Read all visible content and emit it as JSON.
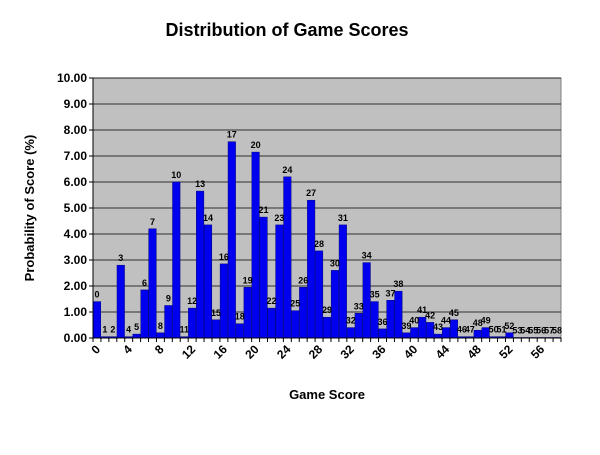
{
  "chart_data": {
    "type": "bar",
    "title": "Distribution of Game Scores",
    "xlabel": "Game Score",
    "ylabel": "Probability of Score (%)",
    "ylim": [
      0,
      10
    ],
    "y_ticks": [
      "0.00",
      "1.00",
      "2.00",
      "3.00",
      "4.00",
      "5.00",
      "6.00",
      "7.00",
      "8.00",
      "9.00",
      "10.00"
    ],
    "x_ticks": [
      "0",
      "4",
      "8",
      "12",
      "16",
      "20",
      "24",
      "28",
      "32",
      "36",
      "40",
      "44",
      "48",
      "52",
      "56"
    ],
    "categories": [
      "0",
      "1",
      "2",
      "3",
      "4",
      "5",
      "6",
      "7",
      "8",
      "9",
      "10",
      "11",
      "12",
      "13",
      "14",
      "15",
      "16",
      "17",
      "18",
      "19",
      "20",
      "21",
      "22",
      "23",
      "24",
      "25",
      "26",
      "27",
      "28",
      "29",
      "30",
      "31",
      "32",
      "33",
      "34",
      "35",
      "36",
      "37",
      "38",
      "39",
      "40",
      "41",
      "42",
      "43",
      "44",
      "45",
      "46",
      "47",
      "48",
      "49",
      "50",
      "51",
      "52",
      "53",
      "54",
      "55",
      "56",
      "57",
      "58"
    ],
    "values": [
      1.4,
      0.05,
      0.05,
      2.8,
      0.05,
      0.15,
      1.85,
      4.2,
      0.2,
      1.25,
      6.0,
      0.05,
      1.15,
      5.65,
      4.35,
      0.7,
      2.85,
      7.55,
      0.55,
      1.95,
      7.15,
      4.65,
      1.15,
      4.35,
      6.2,
      1.05,
      1.95,
      5.3,
      3.35,
      0.8,
      2.6,
      4.35,
      0.4,
      0.95,
      2.9,
      1.4,
      0.35,
      1.45,
      1.8,
      0.2,
      0.4,
      0.8,
      0.6,
      0.15,
      0.4,
      0.7,
      0.05,
      0.05,
      0.3,
      0.4,
      0.05,
      0.05,
      0.2,
      0.02,
      0.02,
      0.02,
      0.02,
      0.02,
      0.02
    ],
    "bar_color": "#0000ee",
    "plot_background": "#c0c0c0",
    "grid": true
  }
}
